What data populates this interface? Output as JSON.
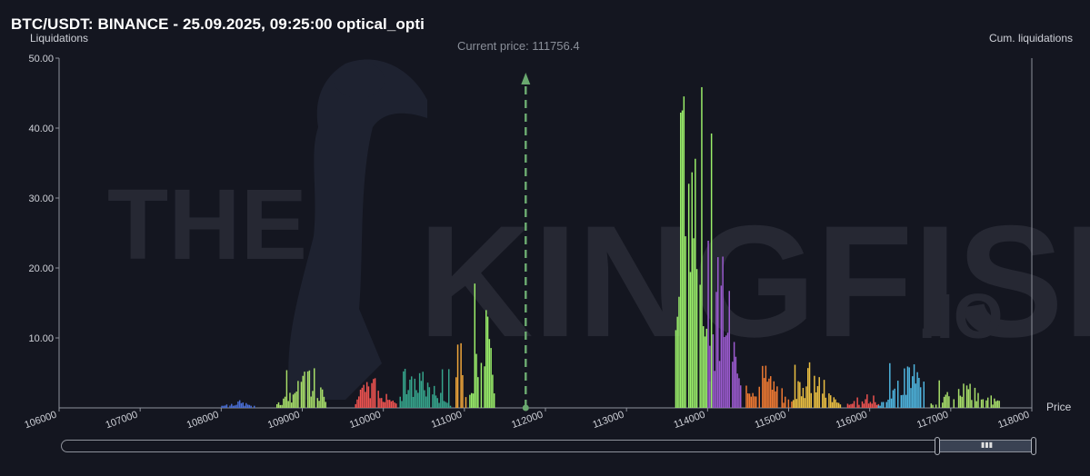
{
  "header": {
    "title": "BTC/USDT: BINANCE - 25.09.2025, 09:25:00 optical_opti"
  },
  "watermark": {
    "line1": "THE",
    "line2": "KINGFISHER",
    "suffix": ".IO"
  },
  "current_price": {
    "label": "Current price: 111756.4",
    "value": 111756.4
  },
  "colors": {
    "background": "#141620",
    "axis": "#8e929b",
    "current_price_line": "#6aa86f",
    "blue": "#4a6fd8",
    "lightgreen": "#a9e06a",
    "red": "#ef5350",
    "teal": "#36a58c",
    "orange": "#f2a73a",
    "brightgreen": "#9bf06a",
    "purple": "#9c5bd0",
    "deeporange": "#f07a32",
    "gold": "#ecc042",
    "skyblue": "#4fb6e0"
  },
  "chart_data": {
    "type": "bar",
    "xlabel": "Price",
    "ylabel": "Liquidations",
    "y2label": "Cum. liquidations",
    "xlim": [
      106000,
      118000
    ],
    "ylim": [
      0,
      50
    ],
    "x_ticks": [
      "106000",
      "107000",
      "108000",
      "109000",
      "110000",
      "111000",
      "112000",
      "113000",
      "114000",
      "115000",
      "116000",
      "117000",
      "118000"
    ],
    "y_ticks": [
      "10.00",
      "20.00",
      "30.00",
      "40.00",
      "50.00"
    ],
    "bar_width": 20,
    "clusters": [
      {
        "color": "blue",
        "start": 108000,
        "end": 108400,
        "max": 1.2
      },
      {
        "color": "lightgreen",
        "start": 108680,
        "end": 109280,
        "max": 6
      },
      {
        "color": "red",
        "start": 109650,
        "end": 110180,
        "max": 5
      },
      {
        "color": "teal",
        "start": 110200,
        "end": 110830,
        "max": 6
      },
      {
        "color": "orange",
        "start": 110870,
        "end": 111020,
        "max": 12
      },
      {
        "color": "brightgreen",
        "start": 111060,
        "end": 111360,
        "max": 20
      },
      {
        "color": "brightgreen",
        "start": 113600,
        "end": 114050,
        "max": 46
      },
      {
        "color": "purple",
        "start": 114000,
        "end": 114400,
        "max": 28
      },
      {
        "color": "deeporange",
        "start": 114470,
        "end": 115050,
        "max": 7
      },
      {
        "color": "gold",
        "start": 115050,
        "end": 115630,
        "max": 7
      },
      {
        "color": "red",
        "start": 115700,
        "end": 116100,
        "max": 2
      },
      {
        "color": "skyblue",
        "start": 116100,
        "end": 116700,
        "max": 7
      },
      {
        "color": "lightgreen",
        "start": 116750,
        "end": 117600,
        "max": 4
      }
    ]
  },
  "scrollbar": {
    "position_fraction": 0.9
  }
}
